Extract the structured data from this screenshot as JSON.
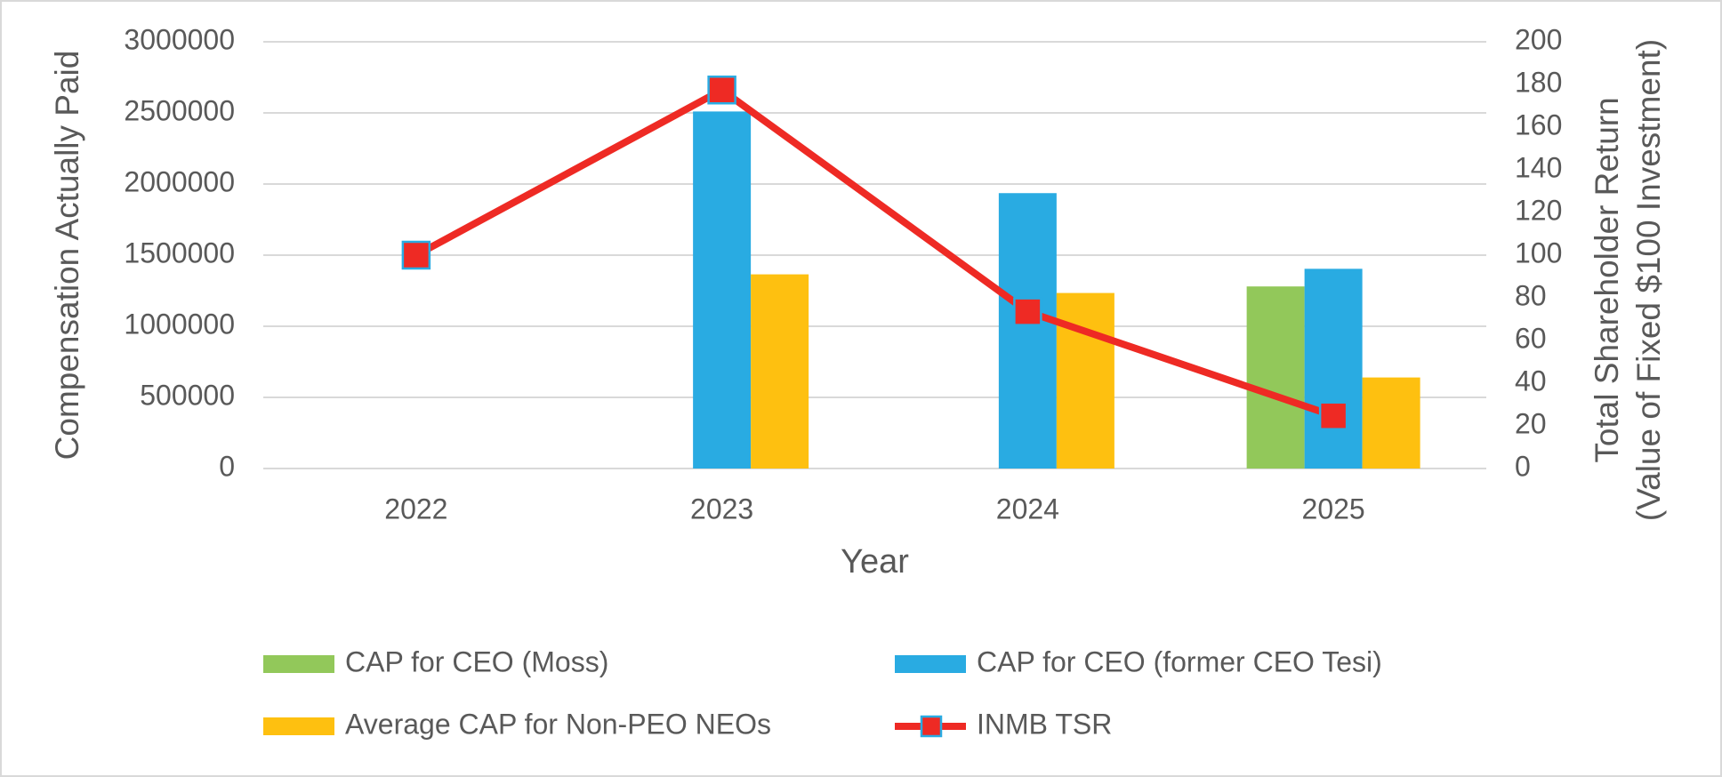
{
  "chart_data": {
    "type": "bar_line",
    "x_label": "Year",
    "y_label": "Compensation Actually Paid",
    "y2_label": [
      "Total Shareholder Return",
      "(Value of Fixed $100 Investment)"
    ],
    "categories": [
      "2022",
      "2023",
      "2024",
      "2025"
    ],
    "ylim": [
      0,
      3000000
    ],
    "yticks": [
      0,
      500000,
      1000000,
      1500000,
      2000000,
      2500000,
      3000000
    ],
    "y2lim": [
      0,
      200
    ],
    "y2ticks": [
      0,
      20,
      40,
      60,
      80,
      100,
      120,
      140,
      160,
      180,
      200
    ],
    "grid": true,
    "series": [
      {
        "name": "CAP for CEO (Moss)",
        "type": "bar",
        "color": "#92c85a",
        "values": [
          null,
          null,
          null,
          1280000
        ]
      },
      {
        "name": "CAP for CEO (former CEO Tesi)",
        "type": "bar",
        "color": "#29abe2",
        "values": [
          null,
          2510000,
          1936000,
          1404000
        ]
      },
      {
        "name": "Average CAP for Non-PEO NEOs",
        "type": "bar",
        "color": "#fec010",
        "values": [
          null,
          1365000,
          1234000,
          640000
        ]
      },
      {
        "name": "INMB TSR",
        "type": "line",
        "axis": "y2",
        "color": "#ee2a24",
        "marker_edge": "#29abe2",
        "values": [
          100,
          177.4,
          73.5,
          24.7
        ]
      }
    ]
  }
}
